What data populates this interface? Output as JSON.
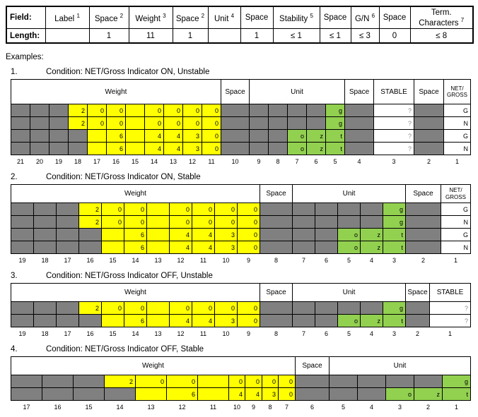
{
  "page": {
    "examples_label": "Examples:"
  },
  "colors": {
    "yellow": "#ffff00",
    "green": "#92d050",
    "gray": "#808080",
    "question": "#8c8c8c"
  },
  "field_table": {
    "field_label": "Field:",
    "length_label": "Length:",
    "columns": [
      {
        "name": "Label",
        "sup": "1",
        "length": ""
      },
      {
        "name": "Space",
        "sup": "2",
        "length": "1"
      },
      {
        "name": "Weight",
        "sup": "3",
        "length": "11"
      },
      {
        "name": "Space",
        "sup": "2",
        "length": "1"
      },
      {
        "name": "Unit",
        "sup": "4",
        "length": ""
      },
      {
        "name": "Space",
        "sup": "",
        "length": "1"
      },
      {
        "name": "Stability",
        "sup": "5",
        "length": "≤ 1"
      },
      {
        "name": "Space",
        "sup": "",
        "length": "≤ 1"
      },
      {
        "name": "G/N",
        "sup": "6",
        "length": "≤ 3"
      },
      {
        "name": "Space",
        "sup": "",
        "length": "0"
      },
      {
        "name": "Term. Characters",
        "sup": "7",
        "length": "≤ 8"
      }
    ]
  },
  "cell_encoding": {
    "x": "gray",
    "y": "yellow",
    "g": "green",
    "w": "white"
  },
  "examples": [
    {
      "number": "1.",
      "title": "Condition: NET/Gross Indicator ON, Unstable",
      "headers": [
        {
          "label": "Weight",
          "span": 11
        },
        {
          "label": "Space",
          "span": 1
        },
        {
          "label": "Unit",
          "span": 5
        },
        {
          "label": "Space",
          "span": 1
        },
        {
          "label": "STABLE",
          "span": 1
        },
        {
          "label": "Space",
          "span": 1
        },
        {
          "label": "NET/\nGROSS",
          "span": 1
        }
      ],
      "rows": [
        [
          "x",
          "x",
          "x",
          "y2",
          "y0",
          "y0",
          "y",
          "y0",
          "y0",
          "y0",
          "y0",
          "x",
          "x",
          "x",
          "x",
          "x",
          "gg",
          "x",
          "w?",
          "x",
          "wG"
        ],
        [
          "x",
          "x",
          "x",
          "y2",
          "y0",
          "y0",
          "y",
          "y0",
          "y0",
          "y0",
          "y0",
          "x",
          "x",
          "x",
          "x",
          "x",
          "gg",
          "x",
          "w?",
          "x",
          "wN"
        ],
        [
          "x",
          "x",
          "x",
          "x",
          "y",
          "y6",
          "y",
          "y4",
          "y4",
          "y3",
          "y0",
          "x",
          "x",
          "x",
          "go",
          "gz",
          "gt",
          "x",
          "w?",
          "x",
          "wG"
        ],
        [
          "x",
          "x",
          "x",
          "x",
          "y",
          "y6",
          "y",
          "y4",
          "y4",
          "y3",
          "y0",
          "x",
          "x",
          "x",
          "go",
          "gz",
          "gt",
          "x",
          "w?",
          "x",
          "wN"
        ]
      ],
      "positions": [
        "21",
        "20",
        "19",
        "18",
        "17",
        "16",
        "15",
        "14",
        "13",
        "12",
        "11",
        "10",
        "9",
        "8",
        "7",
        "6",
        "5",
        "4",
        "3",
        "2",
        "1"
      ]
    },
    {
      "number": "2.",
      "title": "Condition: NET/Gross Indicator ON, Stable",
      "headers": [
        {
          "label": "Weight",
          "span": 11
        },
        {
          "label": "Space",
          "span": 1
        },
        {
          "label": "Unit",
          "span": 5
        },
        {
          "label": "Space",
          "span": 1
        },
        {
          "label": "NET/\nGROSS",
          "span": 1
        }
      ],
      "rows": [
        [
          "x",
          "x",
          "x",
          "y2",
          "y0",
          "y0",
          "y",
          "y0",
          "y0",
          "y0",
          "y0",
          "x",
          "x",
          "x",
          "x",
          "x",
          "gg",
          "x",
          "wG"
        ],
        [
          "x",
          "x",
          "x",
          "y2",
          "y0",
          "y0",
          "y",
          "y0",
          "y0",
          "y0",
          "y0",
          "x",
          "x",
          "x",
          "x",
          "x",
          "gg",
          "x",
          "wN"
        ],
        [
          "x",
          "x",
          "x",
          "x",
          "y",
          "y6",
          "y",
          "y4",
          "y4",
          "y3",
          "y0",
          "x",
          "x",
          "x",
          "go",
          "gz",
          "gt",
          "x",
          "wG"
        ],
        [
          "x",
          "x",
          "x",
          "x",
          "y",
          "y6",
          "y",
          "y4",
          "y4",
          "y3",
          "y0",
          "x",
          "x",
          "x",
          "go",
          "gz",
          "gt",
          "x",
          "wN"
        ]
      ],
      "positions": [
        "19",
        "18",
        "17",
        "16",
        "15",
        "14",
        "13",
        "12",
        "11",
        "10",
        "9",
        "8",
        "7",
        "6",
        "5",
        "4",
        "3",
        "2",
        "1"
      ]
    },
    {
      "number": "3.",
      "title": "Condition: NET/Gross Indicator OFF, Unstable",
      "headers": [
        {
          "label": "Weight",
          "span": 11
        },
        {
          "label": "Space",
          "span": 1
        },
        {
          "label": "Unit",
          "span": 5
        },
        {
          "label": "Space",
          "span": 1
        },
        {
          "label": "STABLE",
          "span": 1
        }
      ],
      "rows": [
        [
          "x",
          "x",
          "x",
          "y2",
          "y0",
          "y0",
          "y",
          "y0",
          "y0",
          "y0",
          "y0",
          "x",
          "x",
          "x",
          "x",
          "x",
          "gg",
          "x",
          "w?"
        ],
        [
          "x",
          "x",
          "x",
          "x",
          "y",
          "y6",
          "y",
          "y4",
          "y4",
          "y3",
          "y0",
          "x",
          "x",
          "x",
          "go",
          "gz",
          "gt",
          "x",
          "w?"
        ]
      ],
      "positions": [
        "19",
        "18",
        "17",
        "16",
        "15",
        "14",
        "13",
        "12",
        "11",
        "10",
        "9",
        "8",
        "7",
        "6",
        "5",
        "4",
        "3",
        "2",
        "1"
      ]
    },
    {
      "number": "4.",
      "title": "Condition: NET/Gross Indicator OFF, Stable",
      "headers": [
        {
          "label": "Weight",
          "span": 11
        },
        {
          "label": "Space",
          "span": 1
        },
        {
          "label": "Unit",
          "span": 5
        }
      ],
      "rows": [
        [
          "x",
          "x",
          "x",
          "y2",
          "y0",
          "y0",
          "y",
          "y0",
          "y0",
          "y0",
          "y0",
          "x",
          "x",
          "x",
          "x",
          "x",
          "gg"
        ],
        [
          "x",
          "x",
          "x",
          "x",
          "y",
          "y6",
          "y",
          "y4",
          "y4",
          "y3",
          "y0",
          "x",
          "x",
          "x",
          "go",
          "gz",
          "gt"
        ]
      ],
      "positions": [
        "17",
        "16",
        "15",
        "14",
        "13",
        "12",
        "11",
        "10",
        "9",
        "8",
        "7",
        "6",
        "5",
        "4",
        "3",
        "2",
        "1"
      ]
    }
  ]
}
